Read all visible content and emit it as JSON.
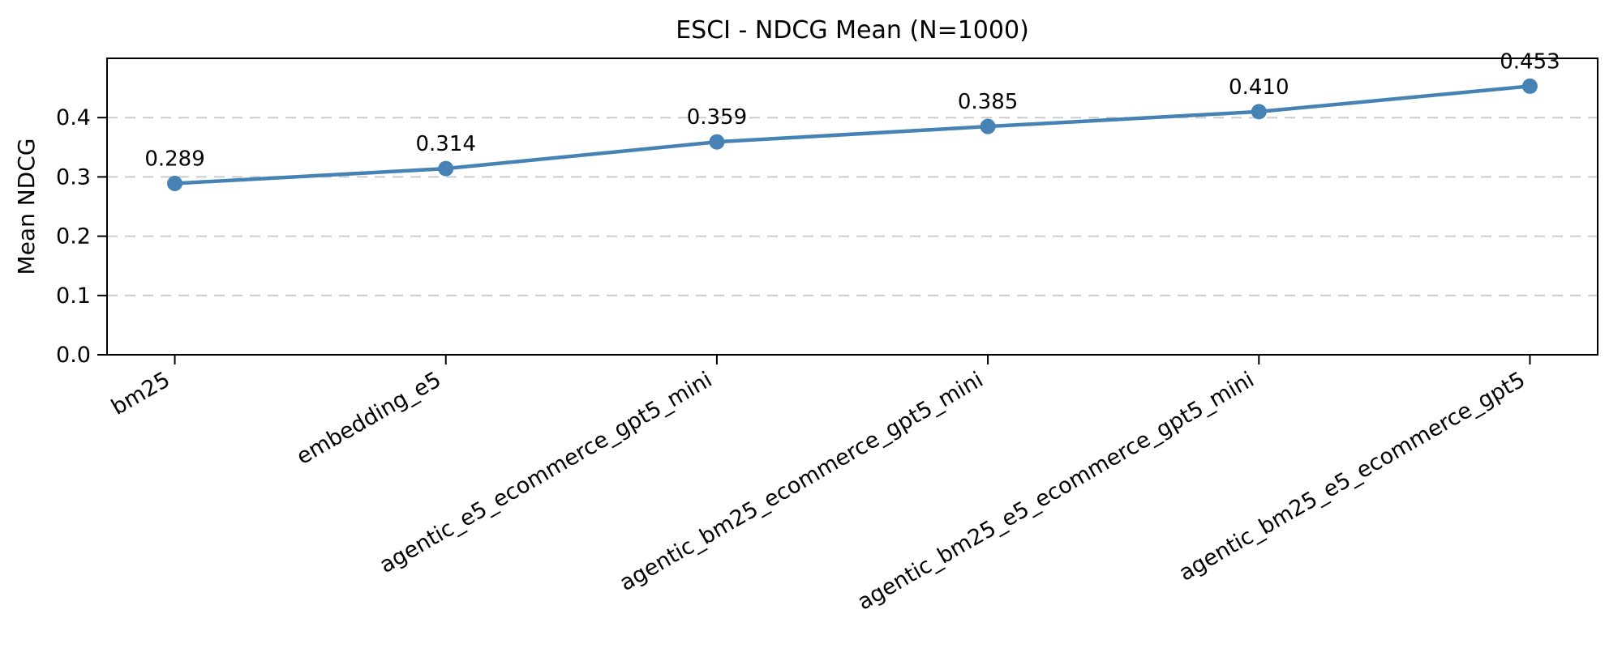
{
  "chart_data": {
    "type": "line",
    "title": "ESCI - NDCG Mean (N=1000)",
    "ylabel": "Mean NDCG",
    "xlabel": "",
    "categories": [
      "bm25",
      "embedding_e5",
      "agentic_e5_ecommerce_gpt5_mini",
      "agentic_bm25_ecommerce_gpt5_mini",
      "agentic_bm25_e5_ecommerce_gpt5_mini",
      "agentic_bm25_e5_ecommerce_gpt5"
    ],
    "values": [
      0.289,
      0.314,
      0.359,
      0.385,
      0.41,
      0.453
    ],
    "point_labels": [
      "0.289",
      "0.314",
      "0.359",
      "0.385",
      "0.410",
      "0.453"
    ],
    "yticks": [
      0.0,
      0.1,
      0.2,
      0.3,
      0.4
    ],
    "ytick_labels": [
      "0.0",
      "0.1",
      "0.2",
      "0.3",
      "0.4"
    ],
    "ylim": [
      0,
      0.5
    ],
    "grid": true,
    "grid_axis": "y",
    "legend": "none",
    "x_tick_rotation_deg": 30,
    "colors": {
      "line": "#4682B4",
      "marker": "#4682B4",
      "grid": "#cccccc",
      "axis": "#000000",
      "background": "#ffffff",
      "text": "#000000"
    }
  }
}
